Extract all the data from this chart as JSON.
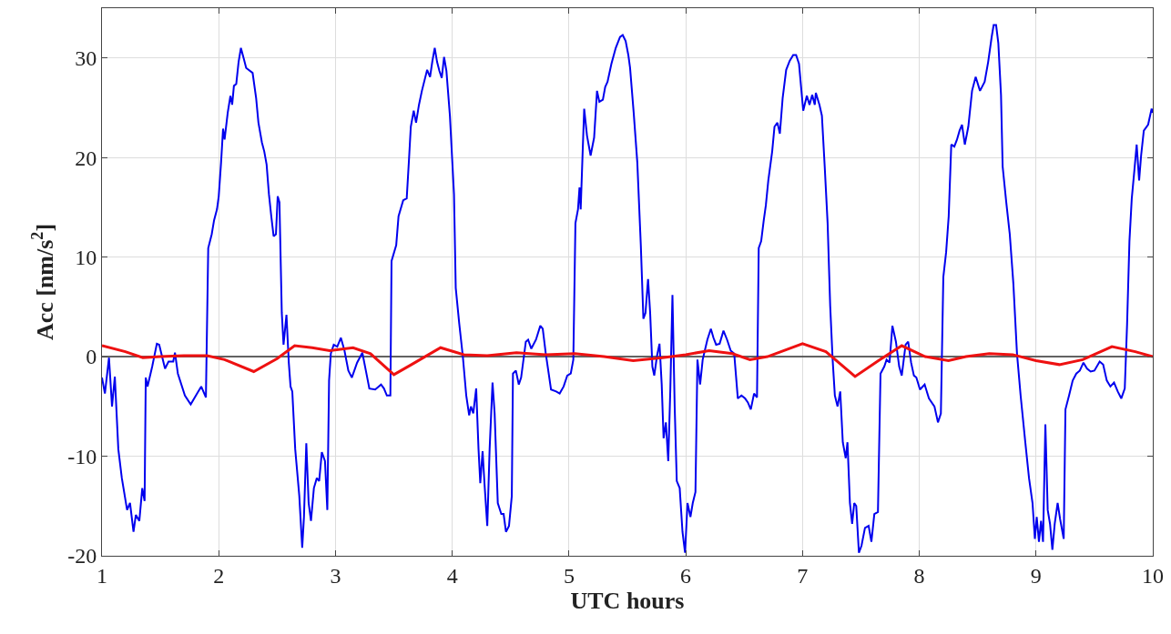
{
  "chart_data": {
    "type": "line",
    "xlabel": "UTC hours",
    "ylabel": "Acc [nm/s$^{2}$]",
    "xlim": [
      1,
      10
    ],
    "xticks": [
      1,
      2,
      3,
      4,
      5,
      6,
      7,
      8,
      9,
      10
    ],
    "ylim": [
      -20,
      35
    ],
    "yticks": [
      -20,
      -10,
      0,
      10,
      20,
      30
    ],
    "grid": true,
    "line_style": "solid",
    "marker": "none",
    "ref_lines": [
      {
        "axis": "y",
        "value": 0,
        "color": "#333333"
      }
    ],
    "series": [
      {
        "color": "#0000ee",
        "x": [
          1.0,
          1.025,
          1.06,
          1.086,
          1.11,
          1.14,
          1.17,
          1.215,
          1.24,
          1.27,
          1.29,
          1.32,
          1.345,
          1.365,
          1.375,
          1.39,
          1.43,
          1.47,
          1.49,
          1.54,
          1.57,
          1.61,
          1.625,
          1.65,
          1.71,
          1.76,
          1.815,
          1.85,
          1.89,
          1.91,
          1.94,
          1.96,
          1.985,
          2.0,
          2.02,
          2.037,
          2.05,
          2.077,
          2.1,
          2.115,
          2.13,
          2.15,
          2.17,
          2.19,
          2.215,
          2.235,
          2.29,
          2.32,
          2.34,
          2.37,
          2.39,
          2.41,
          2.43,
          2.45,
          2.47,
          2.49,
          2.505,
          2.52,
          2.54,
          2.555,
          2.58,
          2.6,
          2.615,
          2.63,
          2.655,
          2.69,
          2.715,
          2.73,
          2.75,
          2.77,
          2.79,
          2.815,
          2.84,
          2.86,
          2.883,
          2.91,
          2.93,
          2.945,
          2.96,
          2.985,
          3.015,
          3.046,
          3.077,
          3.11,
          3.14,
          3.185,
          3.23,
          3.26,
          3.29,
          3.34,
          3.37,
          3.39,
          3.415,
          3.44,
          3.47,
          3.48,
          3.52,
          3.54,
          3.58,
          3.61,
          3.63,
          3.645,
          3.67,
          3.69,
          3.715,
          3.74,
          3.785,
          3.81,
          3.83,
          3.85,
          3.87,
          3.89,
          3.91,
          3.93,
          3.95,
          3.98,
          4.015,
          4.03,
          4.06,
          4.09,
          4.12,
          4.145,
          4.16,
          4.18,
          4.205,
          4.225,
          4.24,
          4.26,
          4.277,
          4.3,
          4.32,
          4.345,
          4.363,
          4.39,
          4.42,
          4.44,
          4.46,
          4.486,
          4.51,
          4.52,
          4.545,
          4.57,
          4.59,
          4.63,
          4.65,
          4.677,
          4.717,
          4.754,
          4.775,
          4.8,
          4.846,
          4.89,
          4.92,
          4.954,
          4.985,
          5.015,
          5.037,
          5.055,
          5.077,
          5.09,
          5.1,
          5.117,
          5.13,
          5.154,
          5.185,
          5.215,
          5.24,
          5.26,
          5.29,
          5.31,
          5.33,
          5.363,
          5.4,
          5.437,
          5.46,
          5.485,
          5.508,
          5.523,
          5.554,
          5.585,
          5.615,
          5.637,
          5.655,
          5.677,
          5.695,
          5.714,
          5.73,
          5.754,
          5.775,
          5.794,
          5.81,
          5.83,
          5.85,
          5.868,
          5.886,
          5.905,
          5.923,
          5.948,
          5.972,
          5.994,
          6.015,
          6.04,
          6.06,
          6.083,
          6.1,
          6.123,
          6.145,
          6.163,
          6.185,
          6.215,
          6.237,
          6.26,
          6.29,
          6.323,
          6.354,
          6.385,
          6.415,
          6.446,
          6.477,
          6.508,
          6.532,
          6.557,
          6.585,
          6.61,
          6.625,
          6.646,
          6.668,
          6.686,
          6.707,
          6.74,
          6.76,
          6.785,
          6.806,
          6.83,
          6.86,
          6.89,
          6.92,
          6.945,
          6.97,
          7.006,
          7.037,
          7.06,
          7.083,
          7.105,
          7.114,
          7.145,
          7.166,
          7.19,
          7.215,
          7.237,
          7.258,
          7.277,
          7.3,
          7.323,
          7.345,
          7.37,
          7.385,
          7.406,
          7.425,
          7.443,
          7.46,
          7.483,
          7.505,
          7.535,
          7.566,
          7.59,
          7.615,
          7.646,
          7.668,
          7.7,
          7.72,
          7.745,
          7.77,
          7.8,
          7.828,
          7.85,
          7.883,
          7.905,
          7.93,
          7.954,
          7.975,
          8.006,
          8.046,
          8.083,
          8.13,
          8.16,
          8.185,
          8.206,
          8.23,
          8.252,
          8.274,
          8.3,
          8.323,
          8.345,
          8.366,
          8.39,
          8.42,
          8.452,
          8.483,
          8.52,
          8.56,
          8.59,
          8.62,
          8.637,
          8.658,
          8.677,
          8.7,
          8.714,
          8.745,
          8.775,
          8.806,
          8.837,
          8.868,
          8.908,
          8.94,
          8.97,
          8.99,
          9.006,
          9.025,
          9.043,
          9.06,
          9.08,
          9.1,
          9.12,
          9.14,
          9.16,
          9.185,
          9.206,
          9.237,
          9.252,
          9.283,
          9.314,
          9.345,
          9.375,
          9.406,
          9.437,
          9.468,
          9.5,
          9.545,
          9.575,
          9.606,
          9.637,
          9.668,
          9.7,
          9.73,
          9.76,
          9.78,
          9.8,
          9.82,
          9.843,
          9.862,
          9.883,
          9.9,
          9.923,
          9.96,
          9.99,
          10.0
        ],
        "values": [
          -2.1,
          -3.7,
          -0.1,
          -5,
          -2,
          -9.3,
          -12.2,
          -15.4,
          -14.7,
          -17.6,
          -15.9,
          -16.5,
          -13.2,
          -14.5,
          -2.1,
          -3,
          -1,
          1.3,
          1.2,
          -1.2,
          -0.5,
          -0.5,
          0.4,
          -1.7,
          -3.9,
          -4.8,
          -3.7,
          -3,
          -4.1,
          10.9,
          12.3,
          13.7,
          14.8,
          16.1,
          19.5,
          22.9,
          21.8,
          24.5,
          26.2,
          25.3,
          27.2,
          27.4,
          29.6,
          31,
          29.9,
          29,
          28.5,
          26,
          23.5,
          21.5,
          20.6,
          19.3,
          16.3,
          14.1,
          12.1,
          12.3,
          16.1,
          15.5,
          4.4,
          1.2,
          4.2,
          -0.6,
          -3,
          -3.5,
          -9.3,
          -14,
          -19.2,
          -16.1,
          -8.7,
          -14.7,
          -16.5,
          -13.2,
          -12.2,
          -12.5,
          -9.6,
          -10.5,
          -15.4,
          -2.4,
          0.3,
          1.2,
          1,
          1.9,
          0.6,
          -1.4,
          -2.1,
          -0.6,
          0.4,
          -1.4,
          -3.2,
          -3.3,
          -3,
          -2.8,
          -3.2,
          -3.9,
          -3.9,
          9.6,
          11.2,
          14.1,
          15.7,
          15.9,
          19.9,
          23.1,
          24.7,
          23.5,
          25.3,
          26.7,
          28.8,
          28.1,
          29.7,
          31,
          29.6,
          28.7,
          28,
          30.1,
          28.7,
          24.2,
          16.3,
          6.9,
          3.3,
          0.1,
          -3.9,
          -5.9,
          -5,
          -5.7,
          -3.2,
          -9.3,
          -12.7,
          -9.5,
          -12.9,
          -17,
          -9.3,
          -2.6,
          -5.7,
          -14.7,
          -15.8,
          -15.8,
          -17.6,
          -17,
          -14,
          -1.7,
          -1.4,
          -2.8,
          -2.1,
          1.5,
          1.7,
          0.8,
          1.7,
          3.1,
          2.8,
          0.4,
          -3.3,
          -3.5,
          -3.7,
          -3,
          -1.9,
          -1.7,
          -0.3,
          13.4,
          14.8,
          17,
          14.8,
          20.6,
          24.9,
          22.2,
          20.2,
          22,
          26.7,
          25.6,
          25.8,
          27.1,
          27.6,
          29.4,
          31,
          32.1,
          32.3,
          31.7,
          30.3,
          29,
          24.5,
          19.5,
          11.2,
          3.8,
          4.4,
          7.8,
          4.4,
          -1,
          -1.9,
          0.1,
          1.3,
          -2.8,
          -8.2,
          -6.6,
          -10.5,
          -3.2,
          6.2,
          -5,
          -12.5,
          -13.2,
          -17.6,
          -19.7,
          -14.7,
          -16.1,
          -14.7,
          -13.6,
          -0.3,
          -2.8,
          -0.3,
          0.6,
          1.7,
          2.8,
          1.9,
          1.2,
          1.3,
          2.6,
          1.7,
          0.6,
          0.3,
          -4.2,
          -3.9,
          -4.2,
          -4.6,
          -5.3,
          -3.7,
          -4.1,
          10.9,
          11.6,
          13.7,
          15.2,
          17.7,
          20.6,
          23.1,
          23.5,
          22.4,
          26,
          28.8,
          29.7,
          30.3,
          30.3,
          29.4,
          24.7,
          26.2,
          25.3,
          26.3,
          25.3,
          26.5,
          25.3,
          24.2,
          19.1,
          13.4,
          5.1,
          -0.3,
          -3.9,
          -5,
          -3.5,
          -8.6,
          -10.2,
          -8.6,
          -14.7,
          -16.8,
          -14.7,
          -15,
          -19.7,
          -19,
          -17.2,
          -17,
          -18.6,
          -15.8,
          -15.6,
          -1.7,
          -1,
          -0.3,
          -0.6,
          3.1,
          1.5,
          -1,
          -1.9,
          1.2,
          1.5,
          -0.6,
          -1.9,
          -2.1,
          -3.3,
          -2.8,
          -4.2,
          -5,
          -6.6,
          -5.7,
          8,
          10.5,
          14.1,
          21.3,
          21.1,
          21.8,
          22.7,
          23.3,
          21.3,
          23.1,
          26.7,
          28.1,
          26.7,
          27.6,
          29.6,
          32.1,
          33.3,
          33.3,
          31.5,
          26.3,
          19.1,
          15.5,
          12.3,
          7.3,
          0.3,
          -3.9,
          -8.6,
          -12.2,
          -14.7,
          -18.3,
          -16.1,
          -18.6,
          -16.5,
          -18.6,
          -6.8,
          -15.4,
          -16.8,
          -19.4,
          -16.8,
          -14.7,
          -16.3,
          -18.3,
          -5.3,
          -3.9,
          -2.4,
          -1.7,
          -1.4,
          -0.6,
          -1.2,
          -1.5,
          -1.4,
          -0.5,
          -0.8,
          -2.4,
          -3,
          -2.6,
          -3.5,
          -4.2,
          -3.2,
          3.3,
          11.6,
          15.9,
          18.8,
          21.3,
          17.7,
          20.2,
          22.7,
          23.3,
          24.9,
          24.5
        ]
      },
      {
        "color": "#ee1111",
        "x": [
          1.0,
          1.2,
          1.35,
          1.5,
          1.7,
          1.9,
          2.05,
          2.3,
          2.5,
          2.65,
          2.8,
          2.95,
          3.15,
          3.3,
          3.5,
          3.65,
          3.9,
          4.1,
          4.3,
          4.55,
          4.8,
          5.05,
          5.3,
          5.55,
          5.8,
          6.0,
          6.2,
          6.4,
          6.55,
          6.7,
          7.0,
          7.2,
          7.45,
          7.65,
          7.85,
          8.05,
          8.25,
          8.4,
          8.6,
          8.8,
          9.0,
          9.2,
          9.4,
          9.65,
          9.85,
          10.0
        ],
        "values": [
          1.1,
          0.5,
          -0.1,
          0,
          0.1,
          0.1,
          -0.3,
          -1.5,
          -0.2,
          1.1,
          0.9,
          0.6,
          0.9,
          0.3,
          -1.8,
          -0.8,
          0.9,
          0.2,
          0.1,
          0.4,
          0.2,
          0.3,
          0,
          -0.4,
          -0.1,
          0.2,
          0.6,
          0.3,
          -0.3,
          0,
          1.3,
          0.5,
          -2.0,
          -0.4,
          1.1,
          0,
          -0.4,
          0,
          0.3,
          0.2,
          -0.4,
          -0.8,
          -0.3,
          1.0,
          0.5,
          0
        ]
      }
    ]
  }
}
